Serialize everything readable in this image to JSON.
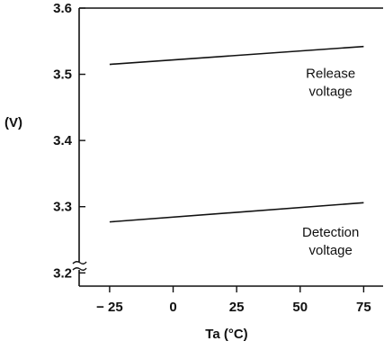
{
  "chart_data": {
    "type": "line",
    "title": "",
    "xlabel": "Ta (°C)",
    "ylabel": "(V)",
    "x": [
      -25,
      75
    ],
    "xticks": [
      -25,
      0,
      25,
      50,
      75
    ],
    "xtick_labels": [
      "− 25",
      "0",
      "25",
      "50",
      "75"
    ],
    "yticks": [
      3.2,
      3.3,
      3.4,
      3.5,
      3.6
    ],
    "ytick_labels": [
      "3.2",
      "3.3",
      "3.4",
      "3.5",
      "3.6"
    ],
    "xlim": [
      -37,
      83
    ],
    "ylim": [
      3.18,
      3.6
    ],
    "y_axis_break": true,
    "grid": false,
    "series": [
      {
        "values": [
          3.515,
          3.542
        ]
      },
      {
        "values": [
          3.277,
          3.306
        ]
      }
    ],
    "annotations": [
      {
        "lines": [
          "Release",
          "voltage"
        ],
        "x": 62,
        "y": 3.495
      },
      {
        "lines": [
          "Detection",
          "voltage"
        ],
        "x": 62,
        "y": 3.255
      }
    ]
  }
}
